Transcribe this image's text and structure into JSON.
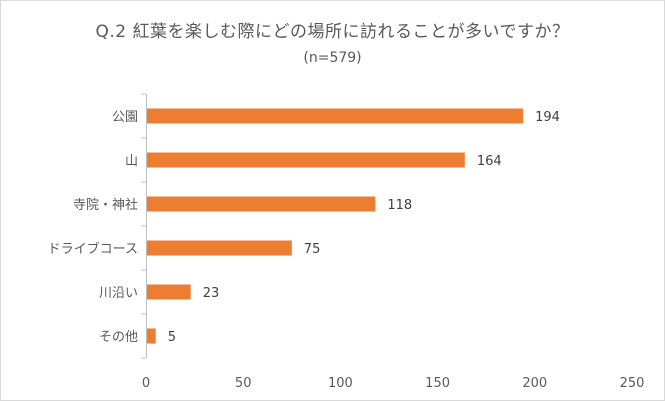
{
  "chart_data": {
    "type": "bar",
    "orientation": "horizontal",
    "title": "Q.2 紅葉を楽しむ際にどの場所に訪れることが多いですか？",
    "subtitle": "(n=579)",
    "categories": [
      "公園",
      "山",
      "寺院・神社",
      "ドライブコース",
      "川沿い",
      "その他"
    ],
    "values": [
      194,
      164,
      118,
      75,
      23,
      5
    ],
    "data_labels": [
      "194",
      "164",
      "118",
      "75",
      "23",
      "5"
    ],
    "xlim": [
      0,
      250
    ],
    "xticks": [
      0,
      50,
      100,
      150,
      200,
      250
    ],
    "xtick_labels": [
      "0",
      "50",
      "100",
      "150",
      "200",
      "250"
    ],
    "bar_color": "#ED7D31",
    "grid": false,
    "legend": "none"
  }
}
